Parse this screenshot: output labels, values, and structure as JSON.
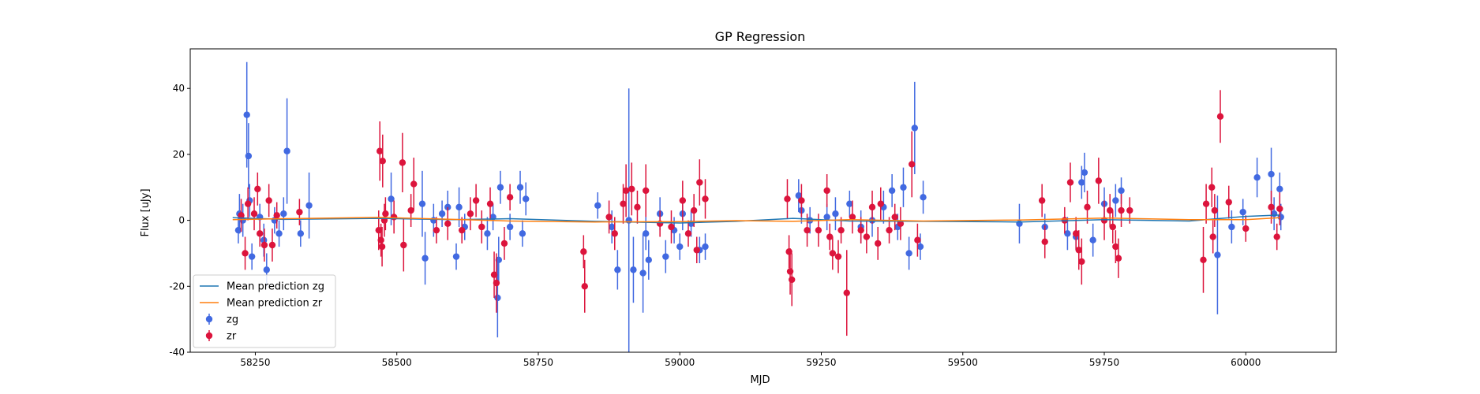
{
  "chart_data": {
    "type": "scatter",
    "title": "GP Regression",
    "xlabel": "MJD",
    "ylabel": "Flux [uJy]",
    "xlim": [
      58135,
      60160
    ],
    "ylim": [
      -40,
      52
    ],
    "xticks": [
      58250,
      58500,
      58750,
      59000,
      59250,
      59500,
      59750,
      60000
    ],
    "yticks": [
      -40,
      -20,
      0,
      20,
      40
    ],
    "grid": false,
    "legend_position": "lower-left",
    "legend": [
      "Mean prediction zg",
      "Mean prediction zr",
      "zg",
      "zr"
    ],
    "lines": [
      {
        "name": "Mean prediction zg",
        "color": "#1f77b4",
        "x": [
          58210,
          58300,
          58470,
          58600,
          58700,
          58850,
          59000,
          59100,
          59200,
          59300,
          59430,
          59600,
          59750,
          59900,
          60000,
          60060
        ],
        "y": [
          0.8,
          0.3,
          0.6,
          0.2,
          0.5,
          -0.3,
          -0.8,
          -0.3,
          0.6,
          -0.2,
          -0.3,
          -0.5,
          0.2,
          -0.2,
          1.2,
          1.6
        ]
      },
      {
        "name": "Mean prediction zr",
        "color": "#ff7f0e",
        "x": [
          58210,
          58300,
          58470,
          58600,
          58700,
          58850,
          59000,
          59100,
          59200,
          59300,
          59430,
          59600,
          59750,
          59900,
          60000,
          60060
        ],
        "y": [
          0.2,
          0.5,
          0.9,
          0.3,
          -0.2,
          -0.5,
          -0.4,
          -0.1,
          -0.3,
          0.2,
          -0.2,
          0.1,
          0.7,
          0.2,
          0.2,
          0.8
        ]
      }
    ],
    "series": [
      {
        "name": "zg",
        "color": "#4169e1",
        "points": [
          [
            58220,
            -3,
            4
          ],
          [
            58222,
            2,
            6
          ],
          [
            58228,
            0,
            5
          ],
          [
            58240,
            6,
            5
          ],
          [
            58244,
            -11,
            4
          ],
          [
            58235,
            32,
            16
          ],
          [
            58238,
            19.5,
            10
          ],
          [
            58258,
            1,
            4
          ],
          [
            58265,
            -6,
            5
          ],
          [
            58270,
            -15,
            5
          ],
          [
            58284,
            0,
            4
          ],
          [
            58292,
            -4,
            4
          ],
          [
            58300,
            2,
            5
          ],
          [
            58306,
            21,
            16
          ],
          [
            58330,
            -4,
            4
          ],
          [
            58345,
            4.5,
            10
          ],
          [
            58490,
            6.5,
            8
          ],
          [
            58545,
            5,
            10
          ],
          [
            58550,
            -11.5,
            8
          ],
          [
            58565,
            0,
            5
          ],
          [
            58580,
            2,
            4
          ],
          [
            58590,
            4,
            5
          ],
          [
            58605,
            -11,
            4
          ],
          [
            58610,
            4,
            6
          ],
          [
            58620,
            -2,
            4
          ],
          [
            58660,
            -4,
            5
          ],
          [
            58670,
            1,
            4
          ],
          [
            58678,
            -23.5,
            12
          ],
          [
            58680,
            -12,
            7
          ],
          [
            58683,
            10,
            5
          ],
          [
            58700,
            -2,
            4
          ],
          [
            58718,
            10,
            5
          ],
          [
            58722,
            -4,
            4
          ],
          [
            58728,
            6.5,
            5
          ],
          [
            58855,
            4.5,
            4
          ],
          [
            58880,
            -2,
            5
          ],
          [
            58890,
            -15,
            6
          ],
          [
            58910,
            0,
            40
          ],
          [
            58918,
            -15,
            10
          ],
          [
            58935,
            -16,
            12
          ],
          [
            58940,
            -4,
            5
          ],
          [
            58945,
            -12,
            6
          ],
          [
            58965,
            2,
            5
          ],
          [
            58975,
            -11,
            5
          ],
          [
            58990,
            -3,
            4
          ],
          [
            59000,
            -8,
            4
          ],
          [
            59005,
            2,
            5
          ],
          [
            59020,
            -1,
            4
          ],
          [
            59035,
            -9,
            4
          ],
          [
            59045,
            -8,
            4
          ],
          [
            59210,
            7.5,
            5
          ],
          [
            59215,
            3,
            4
          ],
          [
            59230,
            0,
            4
          ],
          [
            59260,
            1,
            4
          ],
          [
            59275,
            2,
            5
          ],
          [
            59300,
            5,
            4
          ],
          [
            59320,
            -2,
            5
          ],
          [
            59340,
            0,
            5
          ],
          [
            59360,
            4,
            5
          ],
          [
            59375,
            9,
            5
          ],
          [
            59385,
            -2,
            4
          ],
          [
            59395,
            10,
            6
          ],
          [
            59405,
            -10,
            5
          ],
          [
            59415,
            28,
            14
          ],
          [
            59425,
            -8,
            4
          ],
          [
            59430,
            7,
            5
          ],
          [
            59600,
            -1,
            6
          ],
          [
            59645,
            -2,
            4
          ],
          [
            59685,
            -4,
            5
          ],
          [
            59700,
            -5,
            4
          ],
          [
            59710,
            11.5,
            5
          ],
          [
            59715,
            14.5,
            6
          ],
          [
            59730,
            -6,
            5
          ],
          [
            59750,
            5,
            5
          ],
          [
            59770,
            6,
            5
          ],
          [
            59780,
            9,
            4
          ],
          [
            59950,
            -10.5,
            18
          ],
          [
            59975,
            -2,
            5
          ],
          [
            59995,
            2.5,
            4
          ],
          [
            60020,
            13,
            6
          ],
          [
            60045,
            14,
            8
          ],
          [
            60050,
            2,
            5
          ],
          [
            60060,
            9.5,
            5
          ],
          [
            60062,
            1,
            4
          ]
        ]
      },
      {
        "name": "zr",
        "color": "#dc143c",
        "points": [
          [
            58225,
            1.5,
            5
          ],
          [
            58232,
            -10,
            5
          ],
          [
            58237,
            5,
            5
          ],
          [
            58248,
            2,
            5
          ],
          [
            58254,
            9.5,
            5
          ],
          [
            58258,
            -4,
            4
          ],
          [
            58266,
            -7.5,
            5
          ],
          [
            58274,
            6,
            5
          ],
          [
            58280,
            -7.5,
            5
          ],
          [
            58288,
            1.5,
            4
          ],
          [
            58328,
            2.5,
            4
          ],
          [
            58470,
            21,
            9
          ],
          [
            58475,
            18,
            8
          ],
          [
            58468,
            -3,
            6
          ],
          [
            58472,
            -6,
            5
          ],
          [
            58474,
            -8,
            6
          ],
          [
            58478,
            0,
            5
          ],
          [
            58480,
            2,
            5
          ],
          [
            58495,
            1,
            5
          ],
          [
            58510,
            17.5,
            9
          ],
          [
            58512,
            -7.5,
            8
          ],
          [
            58525,
            3,
            5
          ],
          [
            58530,
            11,
            8
          ],
          [
            58570,
            -3,
            4
          ],
          [
            58590,
            -1,
            5
          ],
          [
            58615,
            -3,
            4
          ],
          [
            58630,
            2,
            5
          ],
          [
            58640,
            6,
            5
          ],
          [
            58650,
            -2,
            5
          ],
          [
            58665,
            5,
            5
          ],
          [
            58672,
            -16.5,
            7
          ],
          [
            58676,
            -19,
            9
          ],
          [
            58690,
            -7,
            5
          ],
          [
            58700,
            7,
            4
          ],
          [
            58830,
            -9.5,
            5
          ],
          [
            58832,
            -20,
            8
          ],
          [
            58875,
            1,
            5
          ],
          [
            58885,
            -4,
            5
          ],
          [
            58900,
            5,
            6
          ],
          [
            58905,
            9,
            8
          ],
          [
            58915,
            9.5,
            8
          ],
          [
            58925,
            4,
            5
          ],
          [
            58940,
            9,
            8
          ],
          [
            58965,
            -1,
            4
          ],
          [
            58985,
            -2,
            5
          ],
          [
            59005,
            6,
            6
          ],
          [
            59015,
            -4,
            4
          ],
          [
            59025,
            3,
            5
          ],
          [
            59030,
            -9,
            4
          ],
          [
            59035,
            11.5,
            7
          ],
          [
            59045,
            6.5,
            6
          ],
          [
            59190,
            6.5,
            6
          ],
          [
            59193,
            -9.5,
            5
          ],
          [
            59195,
            -15.5,
            7
          ],
          [
            59198,
            -18,
            8
          ],
          [
            59215,
            6,
            5
          ],
          [
            59225,
            -3,
            5
          ],
          [
            59245,
            -3,
            5
          ],
          [
            59260,
            9,
            5
          ],
          [
            59265,
            -5,
            4
          ],
          [
            59270,
            -10,
            5
          ],
          [
            59280,
            -11,
            5
          ],
          [
            59285,
            -3,
            4
          ],
          [
            59295,
            -22,
            13
          ],
          [
            59305,
            1,
            5
          ],
          [
            59320,
            -3,
            4
          ],
          [
            59330,
            -5,
            5
          ],
          [
            59340,
            4,
            5
          ],
          [
            59350,
            -7,
            5
          ],
          [
            59355,
            5,
            5
          ],
          [
            59370,
            -3,
            4
          ],
          [
            59380,
            1,
            4
          ],
          [
            59390,
            -1,
            5
          ],
          [
            59410,
            17,
            10
          ],
          [
            59420,
            -6,
            5
          ],
          [
            59640,
            6,
            5
          ],
          [
            59645,
            -6.5,
            5
          ],
          [
            59680,
            0,
            4
          ],
          [
            59690,
            11.5,
            6
          ],
          [
            59700,
            -4,
            5
          ],
          [
            59705,
            -9,
            6
          ],
          [
            59710,
            -12.5,
            7
          ],
          [
            59720,
            4,
            5
          ],
          [
            59740,
            12,
            7
          ],
          [
            59750,
            0,
            6
          ],
          [
            59760,
            3,
            5
          ],
          [
            59765,
            -2,
            5
          ],
          [
            59770,
            -8,
            5
          ],
          [
            59775,
            -11.5,
            6
          ],
          [
            59780,
            3,
            5
          ],
          [
            59795,
            3,
            4
          ],
          [
            59925,
            -12,
            10
          ],
          [
            59930,
            5,
            6
          ],
          [
            59940,
            10,
            6
          ],
          [
            59942,
            -5,
            5
          ],
          [
            59945,
            3,
            5
          ],
          [
            59955,
            31.5,
            8
          ],
          [
            59970,
            5.5,
            5
          ],
          [
            60000,
            -2.5,
            4
          ],
          [
            60045,
            4,
            5
          ],
          [
            60055,
            -5,
            4
          ],
          [
            60060,
            3.5,
            5
          ]
        ]
      }
    ]
  }
}
